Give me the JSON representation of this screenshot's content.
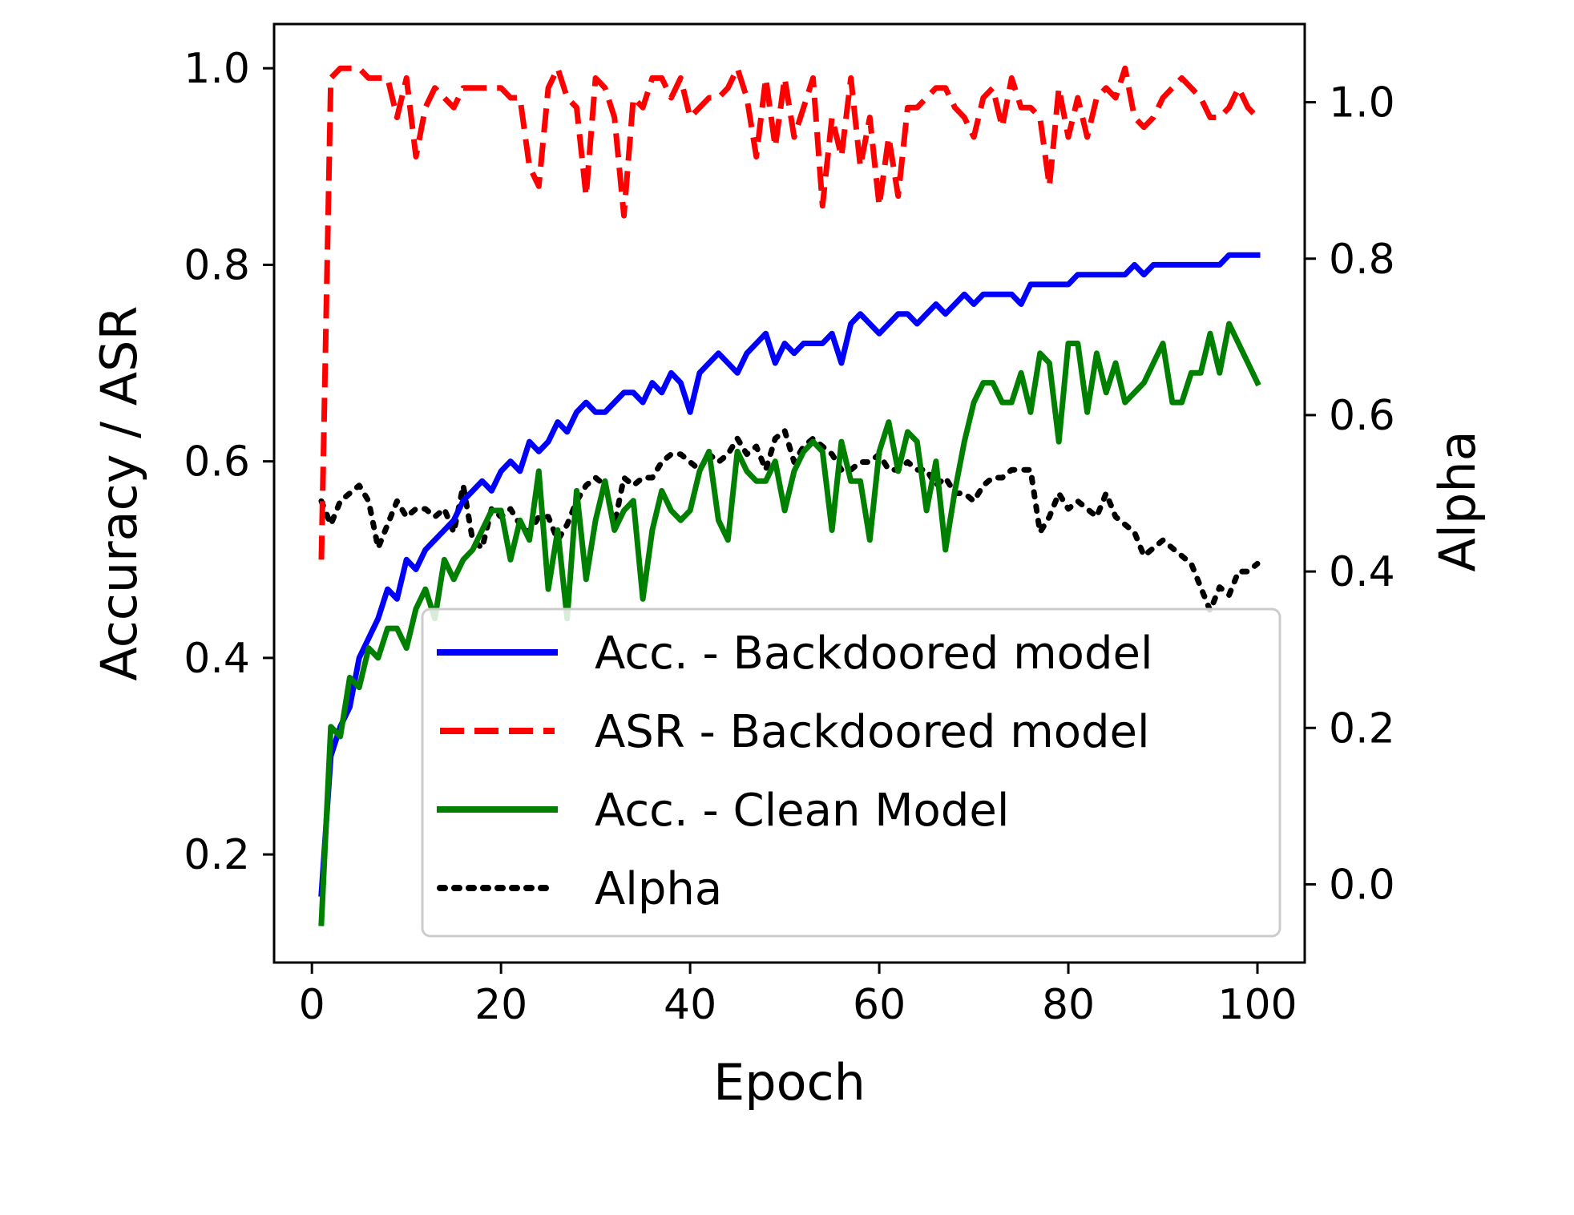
{
  "chart_data": {
    "type": "line",
    "title": "",
    "xlabel": "Epoch",
    "ylabel": "Accuracy / ASR",
    "y2label": "Alpha",
    "xlim": [
      -4,
      105
    ],
    "ylim": [
      0.09,
      1.045
    ],
    "y2lim": [
      -0.1,
      1.1
    ],
    "xticks": [
      0,
      20,
      40,
      60,
      80,
      100
    ],
    "yticks": [
      0.2,
      0.4,
      0.6,
      0.8,
      1.0
    ],
    "y2ticks": [
      0.0,
      0.2,
      0.4,
      0.6,
      0.8,
      1.0
    ],
    "grid": false,
    "legend_position": "lower-right",
    "series": [
      {
        "name": "Acc. - Backdoored model",
        "axis": "left",
        "color": "#0000ff",
        "style": "solid",
        "x": [
          1,
          2,
          3,
          4,
          5,
          6,
          7,
          8,
          9,
          10,
          11,
          12,
          13,
          14,
          15,
          16,
          17,
          18,
          19,
          20,
          21,
          22,
          23,
          24,
          25,
          26,
          27,
          28,
          29,
          30,
          31,
          32,
          33,
          34,
          35,
          36,
          37,
          38,
          39,
          40,
          41,
          42,
          43,
          44,
          45,
          46,
          47,
          48,
          49,
          50,
          51,
          52,
          53,
          54,
          55,
          56,
          57,
          58,
          59,
          60,
          61,
          62,
          63,
          64,
          65,
          66,
          67,
          68,
          69,
          70,
          71,
          72,
          73,
          74,
          75,
          76,
          77,
          78,
          79,
          80,
          81,
          82,
          83,
          84,
          85,
          86,
          87,
          88,
          89,
          90,
          91,
          92,
          93,
          94,
          95,
          96,
          97,
          98,
          99,
          100
        ],
        "values": [
          0.16,
          0.3,
          0.33,
          0.35,
          0.4,
          0.42,
          0.44,
          0.47,
          0.46,
          0.5,
          0.49,
          0.51,
          0.52,
          0.53,
          0.54,
          0.56,
          0.57,
          0.58,
          0.57,
          0.59,
          0.6,
          0.59,
          0.62,
          0.61,
          0.62,
          0.64,
          0.63,
          0.65,
          0.66,
          0.65,
          0.65,
          0.66,
          0.67,
          0.67,
          0.66,
          0.68,
          0.67,
          0.69,
          0.68,
          0.65,
          0.69,
          0.7,
          0.71,
          0.7,
          0.69,
          0.71,
          0.72,
          0.73,
          0.7,
          0.72,
          0.71,
          0.72,
          0.72,
          0.72,
          0.73,
          0.7,
          0.74,
          0.75,
          0.74,
          0.73,
          0.74,
          0.75,
          0.75,
          0.74,
          0.75,
          0.76,
          0.75,
          0.76,
          0.77,
          0.76,
          0.77,
          0.77,
          0.77,
          0.77,
          0.76,
          0.78,
          0.78,
          0.78,
          0.78,
          0.78,
          0.79,
          0.79,
          0.79,
          0.79,
          0.79,
          0.79,
          0.8,
          0.79,
          0.8,
          0.8,
          0.8,
          0.8,
          0.8,
          0.8,
          0.8,
          0.8,
          0.81,
          0.81,
          0.81,
          0.81
        ]
      },
      {
        "name": "ASR - Backdoored model",
        "axis": "left",
        "color": "#ff0000",
        "style": "dashed",
        "x": [
          1,
          2,
          3,
          4,
          5,
          6,
          7,
          8,
          9,
          10,
          11,
          12,
          13,
          14,
          15,
          16,
          17,
          18,
          19,
          20,
          21,
          22,
          23,
          24,
          25,
          26,
          27,
          28,
          29,
          30,
          31,
          32,
          33,
          34,
          35,
          36,
          37,
          38,
          39,
          40,
          41,
          42,
          43,
          44,
          45,
          46,
          47,
          48,
          49,
          50,
          51,
          52,
          53,
          54,
          55,
          56,
          57,
          58,
          59,
          60,
          61,
          62,
          63,
          64,
          65,
          66,
          67,
          68,
          69,
          70,
          71,
          72,
          73,
          74,
          75,
          76,
          77,
          78,
          79,
          80,
          81,
          82,
          83,
          84,
          85,
          86,
          87,
          88,
          89,
          90,
          91,
          92,
          93,
          94,
          95,
          96,
          97,
          98,
          99,
          100
        ],
        "values": [
          0.5,
          0.99,
          1.0,
          1.0,
          1.0,
          0.99,
          0.99,
          0.99,
          0.95,
          0.99,
          0.91,
          0.96,
          0.98,
          0.97,
          0.96,
          0.98,
          0.98,
          0.98,
          0.98,
          0.98,
          0.97,
          0.97,
          0.9,
          0.88,
          0.98,
          1.0,
          0.97,
          0.96,
          0.87,
          0.99,
          0.98,
          0.95,
          0.85,
          0.97,
          0.96,
          0.99,
          0.99,
          0.97,
          0.99,
          0.95,
          0.96,
          0.97,
          0.97,
          0.98,
          1.0,
          0.97,
          0.91,
          0.99,
          0.92,
          0.99,
          0.93,
          0.96,
          0.99,
          0.86,
          0.95,
          0.91,
          0.99,
          0.9,
          0.95,
          0.86,
          0.93,
          0.87,
          0.96,
          0.96,
          0.97,
          0.98,
          0.98,
          0.96,
          0.95,
          0.93,
          0.97,
          0.98,
          0.94,
          0.99,
          0.96,
          0.96,
          0.95,
          0.88,
          0.98,
          0.93,
          0.97,
          0.93,
          0.97,
          0.98,
          0.97,
          1.0,
          0.95,
          0.94,
          0.95,
          0.97,
          0.98,
          0.99,
          0.98,
          0.97,
          0.95,
          0.95,
          0.96,
          0.98,
          0.96,
          0.95
        ]
      },
      {
        "name": "Acc. - Clean Model",
        "axis": "left",
        "color": "#008000",
        "style": "solid",
        "x": [
          1,
          2,
          3,
          4,
          5,
          6,
          7,
          8,
          9,
          10,
          11,
          12,
          13,
          14,
          15,
          16,
          17,
          18,
          19,
          20,
          21,
          22,
          23,
          24,
          25,
          26,
          27,
          28,
          29,
          30,
          31,
          32,
          33,
          34,
          35,
          36,
          37,
          38,
          39,
          40,
          41,
          42,
          43,
          44,
          45,
          46,
          47,
          48,
          49,
          50,
          51,
          52,
          53,
          54,
          55,
          56,
          57,
          58,
          59,
          60,
          61,
          62,
          63,
          64,
          65,
          66,
          67,
          68,
          69,
          70,
          71,
          72,
          73,
          74,
          75,
          76,
          77,
          78,
          79,
          80,
          81,
          82,
          83,
          84,
          85,
          86,
          87,
          88,
          89,
          90,
          91,
          92,
          93,
          94,
          95,
          96,
          97,
          98,
          99,
          100
        ],
        "values": [
          0.13,
          0.33,
          0.32,
          0.38,
          0.37,
          0.41,
          0.4,
          0.43,
          0.43,
          0.41,
          0.45,
          0.47,
          0.44,
          0.5,
          0.48,
          0.5,
          0.51,
          0.53,
          0.55,
          0.55,
          0.5,
          0.54,
          0.52,
          0.59,
          0.47,
          0.53,
          0.44,
          0.57,
          0.48,
          0.54,
          0.58,
          0.53,
          0.55,
          0.56,
          0.46,
          0.53,
          0.57,
          0.55,
          0.54,
          0.55,
          0.59,
          0.61,
          0.54,
          0.52,
          0.61,
          0.59,
          0.58,
          0.58,
          0.6,
          0.55,
          0.59,
          0.61,
          0.62,
          0.61,
          0.53,
          0.62,
          0.58,
          0.58,
          0.52,
          0.61,
          0.64,
          0.59,
          0.63,
          0.62,
          0.55,
          0.6,
          0.51,
          0.57,
          0.62,
          0.66,
          0.68,
          0.68,
          0.66,
          0.66,
          0.69,
          0.65,
          0.71,
          0.7,
          0.62,
          0.72,
          0.72,
          0.65,
          0.71,
          0.67,
          0.7,
          0.66,
          0.67,
          0.68,
          0.7,
          0.72,
          0.66,
          0.66,
          0.69,
          0.69,
          0.73,
          0.69,
          0.74,
          0.72,
          0.7,
          0.68
        ]
      },
      {
        "name": "Alpha",
        "axis": "right",
        "color": "#000000",
        "style": "dotted",
        "x": [
          1,
          2,
          3,
          4,
          5,
          6,
          7,
          8,
          9,
          10,
          11,
          12,
          13,
          14,
          15,
          16,
          17,
          18,
          19,
          20,
          21,
          22,
          23,
          24,
          25,
          26,
          27,
          28,
          29,
          30,
          31,
          32,
          33,
          34,
          35,
          36,
          37,
          38,
          39,
          40,
          41,
          42,
          43,
          44,
          45,
          46,
          47,
          48,
          49,
          50,
          51,
          52,
          53,
          54,
          55,
          56,
          57,
          58,
          59,
          60,
          61,
          62,
          63,
          64,
          65,
          66,
          67,
          68,
          69,
          70,
          71,
          72,
          73,
          74,
          75,
          76,
          77,
          78,
          79,
          80,
          81,
          82,
          83,
          84,
          85,
          86,
          87,
          88,
          89,
          90,
          91,
          92,
          93,
          94,
          95,
          96,
          97,
          98,
          99,
          100
        ],
        "values": [
          0.49,
          0.46,
          0.49,
          0.5,
          0.51,
          0.49,
          0.43,
          0.46,
          0.49,
          0.47,
          0.48,
          0.48,
          0.47,
          0.48,
          0.45,
          0.51,
          0.44,
          0.43,
          0.48,
          0.47,
          0.48,
          0.46,
          0.45,
          0.47,
          0.47,
          0.44,
          0.46,
          0.49,
          0.51,
          0.52,
          0.51,
          0.46,
          0.52,
          0.51,
          0.52,
          0.52,
          0.54,
          0.55,
          0.55,
          0.54,
          0.53,
          0.55,
          0.54,
          0.55,
          0.57,
          0.55,
          0.56,
          0.53,
          0.57,
          0.58,
          0.54,
          0.56,
          0.57,
          0.56,
          0.55,
          0.53,
          0.53,
          0.54,
          0.54,
          0.55,
          0.53,
          0.53,
          0.54,
          0.53,
          0.53,
          0.51,
          0.52,
          0.5,
          0.5,
          0.49,
          0.51,
          0.52,
          0.52,
          0.53,
          0.53,
          0.53,
          0.45,
          0.47,
          0.5,
          0.48,
          0.49,
          0.48,
          0.47,
          0.5,
          0.47,
          0.46,
          0.45,
          0.42,
          0.43,
          0.44,
          0.43,
          0.42,
          0.41,
          0.38,
          0.35,
          0.38,
          0.37,
          0.4,
          0.4,
          0.41
        ]
      }
    ]
  }
}
